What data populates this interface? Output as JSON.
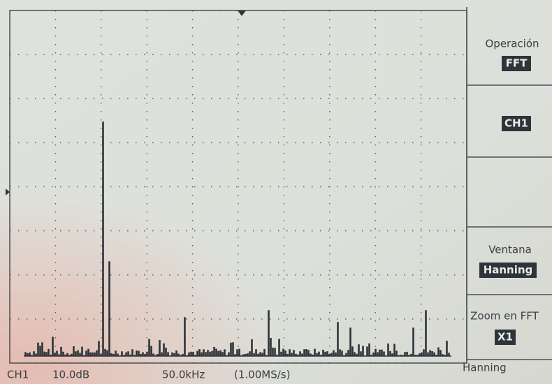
{
  "menu": {
    "operation": {
      "label": "Operación",
      "value": "FFT"
    },
    "source": {
      "value": "CH1"
    },
    "window": {
      "label": "Ventana",
      "value": "Hanning"
    },
    "zoom": {
      "label": "Zoom en FFT",
      "value": "X1"
    }
  },
  "status": {
    "channel": "CH1",
    "scale": "10.0dB",
    "frequency": "50.0kHz",
    "sample_rate": "(1.00MS/s)",
    "window": "Hanning"
  }
}
